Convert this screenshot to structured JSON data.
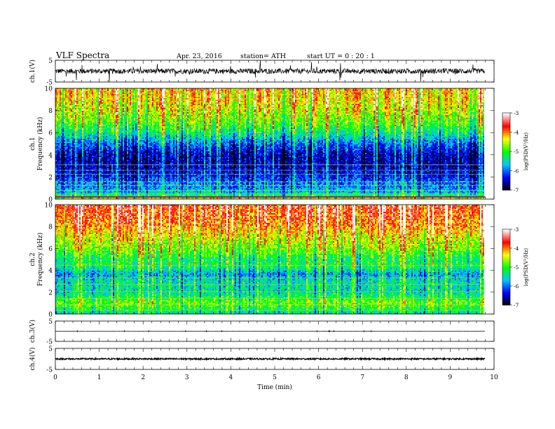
{
  "header": {
    "title": "VLF  Spectra",
    "date": "Apr. 23, 2016",
    "station": "station= ATH",
    "start": "start  UT  =   0  : 20 : 1"
  },
  "chart_data": {
    "type": "heatmap",
    "x": {
      "label": "Time  (min)",
      "range": [
        0,
        10
      ],
      "ticks": [
        "0",
        "1",
        "2",
        "3",
        "4",
        "5",
        "6",
        "7",
        "8",
        "9",
        "10"
      ],
      "data_end_min": 9.8
    },
    "panels": [
      {
        "kind": "waveform",
        "ylabel": "ch.1(V)",
        "ylim": [
          -5,
          5
        ],
        "yticks": [
          "5",
          "-5"
        ],
        "baseline": 0,
        "noise_amplitude": 1.2
      },
      {
        "kind": "spectrogram",
        "channel_label": "ch.1",
        "ylabel": "Frequency  (kHz)",
        "ylim": [
          0,
          10
        ],
        "yticks": [
          "0",
          "2",
          "4",
          "6",
          "8",
          "10"
        ],
        "colorbar": {
          "label": "log(PSD(V²/Hz)",
          "range": [
            -7,
            -3
          ],
          "ticks": [
            "-7",
            "-6",
            "-5",
            "-4",
            "-3"
          ]
        },
        "psd_profile": [
          {
            "f": 0.0,
            "log_psd": -4.6
          },
          {
            "f": 0.5,
            "log_psd": -5.6
          },
          {
            "f": 1.0,
            "log_psd": -5.9
          },
          {
            "f": 1.6,
            "log_psd": -6.1
          },
          {
            "f": 2.2,
            "log_psd": -6.4
          },
          {
            "f": 3.0,
            "log_psd": -6.6
          },
          {
            "f": 4.0,
            "log_psd": -6.6
          },
          {
            "f": 5.0,
            "log_psd": -6.1
          },
          {
            "f": 6.0,
            "log_psd": -5.4
          },
          {
            "f": 7.0,
            "log_psd": -4.9
          },
          {
            "f": 8.0,
            "log_psd": -4.6
          },
          {
            "f": 9.0,
            "log_psd": -4.4
          },
          {
            "f": 10.0,
            "log_psd": -4.3
          }
        ]
      },
      {
        "kind": "spectrogram",
        "channel_label": "ch.2",
        "ylabel": "Frequency  (kHz)",
        "ylim": [
          0,
          10
        ],
        "yticks": [
          "0",
          "2",
          "4",
          "6",
          "8",
          "10"
        ],
        "colorbar": {
          "label": "log(PSD(V²/Hz)",
          "range": [
            -7,
            -3
          ],
          "ticks": [
            "-7",
            "-6",
            "-5",
            "-4",
            "-3"
          ]
        },
        "psd_profile": [
          {
            "f": 0.0,
            "log_psd": -5.5
          },
          {
            "f": 1.0,
            "log_psd": -4.8
          },
          {
            "f": 2.0,
            "log_psd": -5.5
          },
          {
            "f": 3.0,
            "log_psd": -5.5
          },
          {
            "f": 3.6,
            "log_psd": -5.9
          },
          {
            "f": 4.4,
            "log_psd": -5.2
          },
          {
            "f": 5.0,
            "log_psd": -5.3
          },
          {
            "f": 6.0,
            "log_psd": -4.8
          },
          {
            "f": 7.0,
            "log_psd": -4.5
          },
          {
            "f": 8.0,
            "log_psd": -4.1
          },
          {
            "f": 9.0,
            "log_psd": -3.9
          },
          {
            "f": 10.0,
            "log_psd": -3.8
          }
        ]
      },
      {
        "kind": "waveform",
        "ylabel": "ch.3(V)",
        "ylim": [
          -5,
          5
        ],
        "yticks": [
          "5",
          "-5"
        ],
        "baseline": 0,
        "noise_amplitude": 0.05
      },
      {
        "kind": "waveform",
        "ylabel": "ch.4(V)",
        "ylim": [
          -5,
          5
        ],
        "yticks": [
          "5",
          "-5"
        ],
        "baseline": 0,
        "noise_amplitude": 0.35
      }
    ]
  },
  "colors": {
    "colormap": [
      "#000000",
      "#0000ff",
      "#00c8ff",
      "#00ff00",
      "#ffff00",
      "#ff0000",
      "#ffffff"
    ],
    "trace": "#000000"
  }
}
